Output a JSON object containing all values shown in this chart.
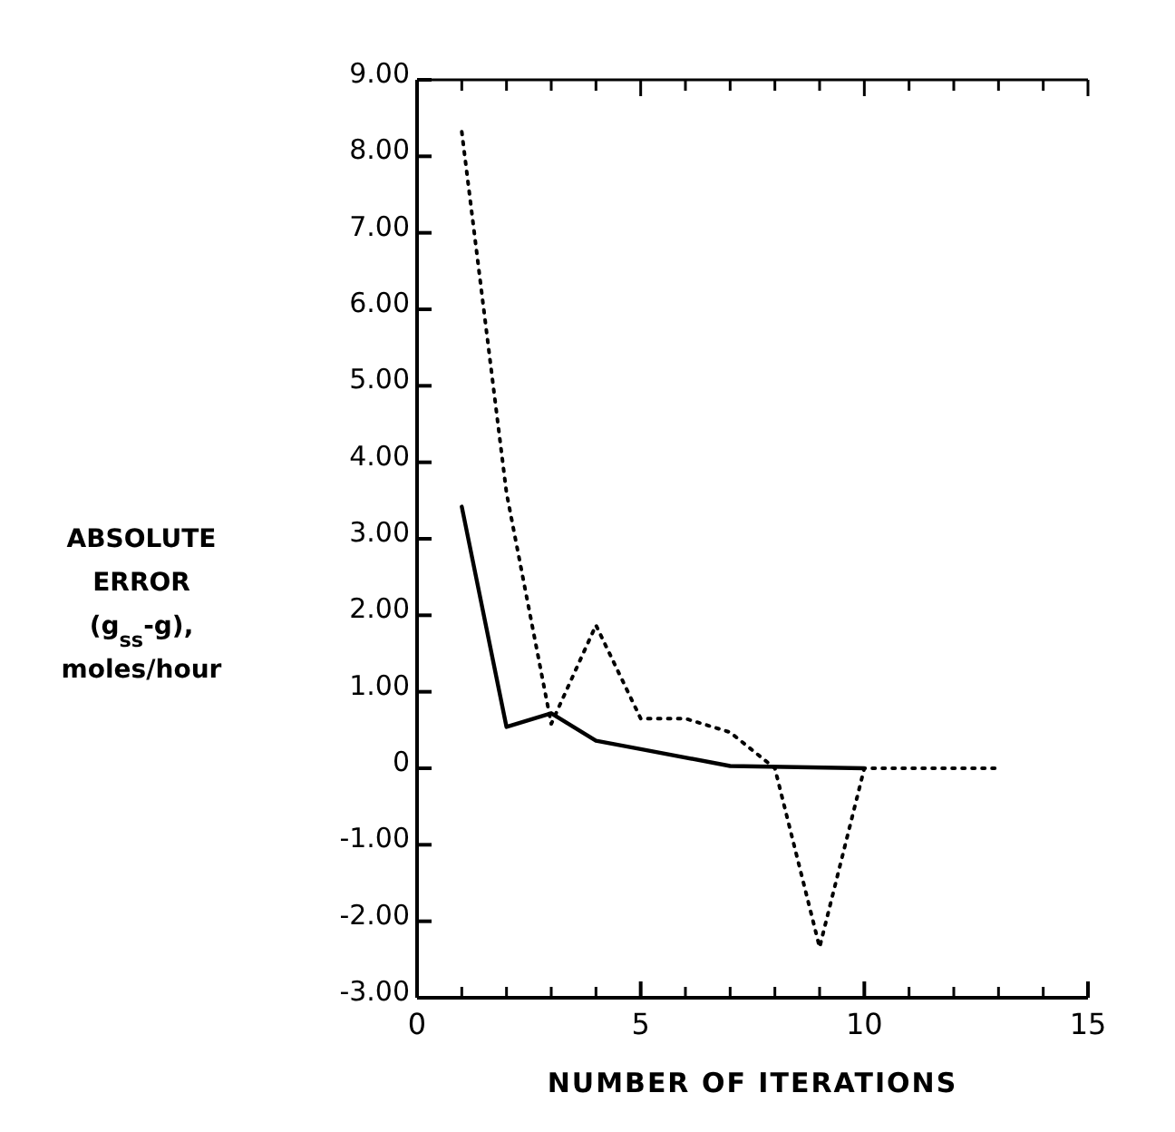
{
  "chart_data": {
    "type": "line",
    "xlabel": "NUMBER OF ITERATIONS",
    "ylabel": "ABSOLUTE\nERROR\n(g$_{ss}$-g),\nmoles/hour",
    "xlim": [
      0,
      15
    ],
    "ylim": [
      -3,
      9
    ],
    "xticks": [
      0,
      {
        "value": 1,
        "label": null
      },
      {
        "value": 2,
        "label": null
      },
      {
        "value": 3,
        "label": null
      },
      {
        "value": 4,
        "label": null
      },
      5,
      {
        "value": 6,
        "label": null
      },
      {
        "value": 7,
        "label": null
      },
      {
        "value": 8,
        "label": null
      },
      {
        "value": 9,
        "label": null
      },
      10,
      {
        "value": 11,
        "label": null
      },
      {
        "value": 12,
        "label": null
      },
      {
        "value": 13,
        "label": null
      },
      {
        "value": 14,
        "label": null
      },
      15
    ],
    "yticks": [
      {
        "value": -3,
        "label": "-3.00"
      },
      {
        "value": -2,
        "label": "-2.00"
      },
      {
        "value": -1,
        "label": "-1.00"
      },
      0,
      {
        "value": 1,
        "label": "1.00"
      },
      {
        "value": 2,
        "label": "2.00"
      },
      {
        "value": 3,
        "label": "3.00"
      },
      {
        "value": 4,
        "label": "4.00"
      },
      {
        "value": 5,
        "label": "5.00"
      },
      {
        "value": 6,
        "label": "6.00"
      },
      {
        "value": 7,
        "label": "7.00"
      },
      {
        "value": 8,
        "label": "8.00"
      },
      {
        "value": 9,
        "label": "9.00"
      }
    ],
    "grid": false,
    "marker": "none",
    "series": [
      {
        "color": "#000000",
        "line_style": "solid",
        "x": [
          1,
          2,
          3,
          4,
          5,
          7,
          10
        ],
        "values": [
          3.42,
          0.54,
          0.72,
          0.36,
          0.25,
          0.03,
          0
        ]
      },
      {
        "color": "#000000",
        "line_style": "dotted",
        "x": [
          1,
          2,
          3,
          4,
          5,
          6,
          7,
          8,
          9,
          10,
          13
        ],
        "values": [
          8.32,
          3.6,
          0.58,
          1.87,
          0.65,
          0.65,
          0.47,
          0,
          -2.34,
          0,
          0
        ]
      }
    ]
  }
}
